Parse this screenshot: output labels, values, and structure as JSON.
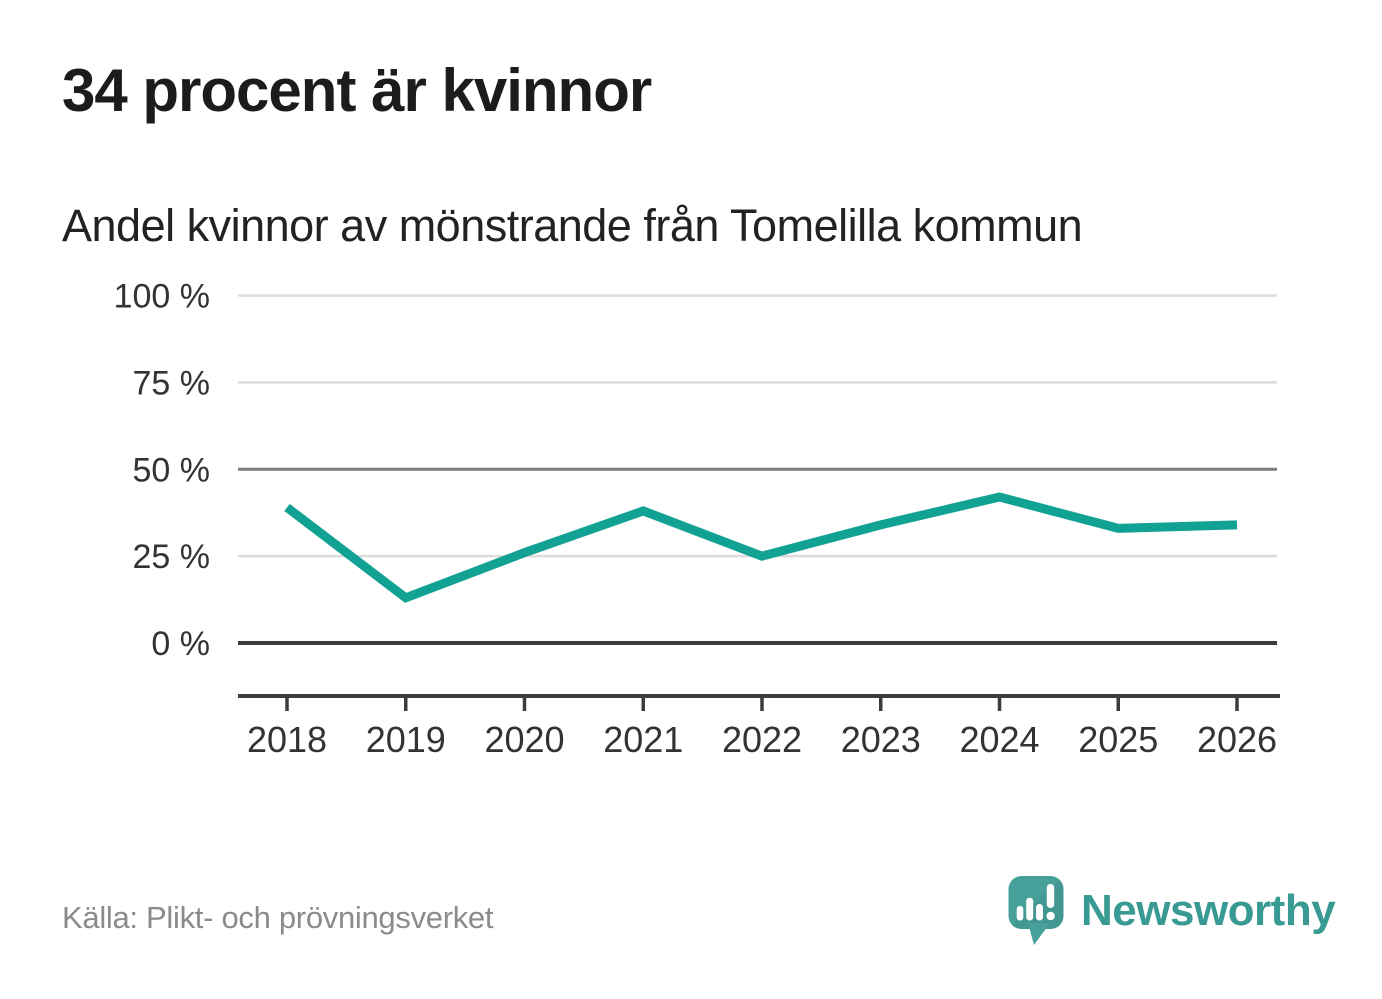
{
  "header": {
    "title": "34 procent är kvinnor",
    "subtitle": "Andel kvinnor av mönstrande från Tomelilla kommun"
  },
  "chart_data": {
    "type": "line",
    "title": "Andel kvinnor av mönstrande från Tomelilla kommun",
    "categories": [
      "2018",
      "2019",
      "2020",
      "2021",
      "2022",
      "2023",
      "2024",
      "2025",
      "2026"
    ],
    "series": [
      {
        "name": "Andel kvinnor av mönstrande",
        "values": [
          39,
          13,
          26,
          38,
          25,
          34,
          42,
          33,
          34
        ]
      }
    ],
    "unit": "%",
    "ylim": [
      0,
      100
    ],
    "yticks": [
      100,
      75,
      50,
      25,
      0
    ],
    "ytick_labels": [
      "100 %",
      "75 %",
      "50 %",
      "25 %",
      "0 %"
    ],
    "ytick_styles": [
      "light",
      "light",
      "mid",
      "light",
      "zero"
    ],
    "grid": true,
    "legend": "none",
    "line_color": "#12a294"
  },
  "footer": {
    "source": "Källa: Plikt- och prövningsverket",
    "brand": "Newsworthy"
  },
  "colors": {
    "accent": "#12a294",
    "brand_text": "#389a92",
    "logo_bubble": "#47a09a",
    "text": "#1c1c1c",
    "axis_text": "#333333",
    "muted": "#8b8b8b",
    "grid_light": "#dcdcdc",
    "grid_mid": "#7d7d7d",
    "grid_zero": "#3c3c3c"
  },
  "icons": {
    "brand_logo": "newsworthy-speech-bubble-bar-chart-icon"
  }
}
